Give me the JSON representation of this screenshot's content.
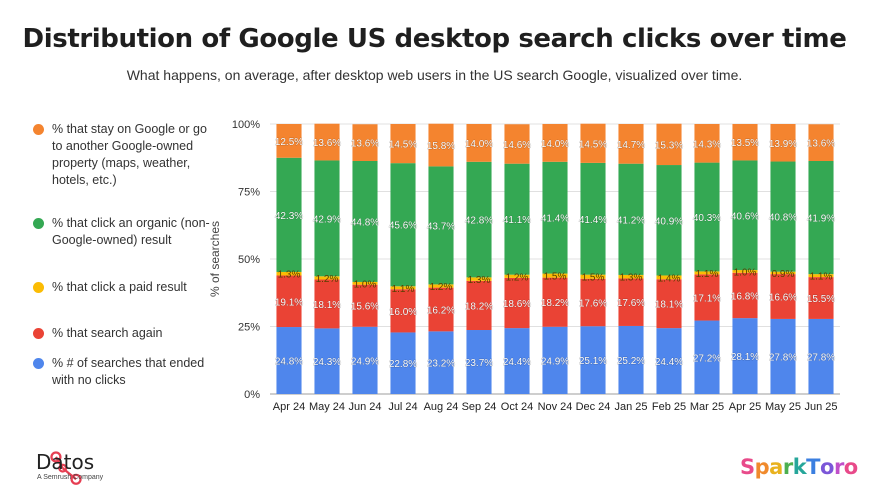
{
  "header": {
    "title": "Distribution of Google US desktop search clicks over time",
    "subtitle": "What happens, on average, after desktop web users in the US search Google, visualized over time."
  },
  "legend": [
    {
      "label": "% that stay on Google or go to another Google-owned property (maps, weather, hotels, etc.)",
      "color": "#f4842f"
    },
    {
      "label": "% that click an organic (non-Google-owned) result",
      "color": "#34a853"
    },
    {
      "label": "% that click a paid result",
      "color": "#fbbc04"
    },
    {
      "label": "% that search again",
      "color": "#ea4335"
    },
    {
      "label": "% # of searches that ended with no clicks",
      "color": "#4f86ec"
    }
  ],
  "chart_data": {
    "type": "bar",
    "stacked": true,
    "categories": [
      "Apr 24",
      "May 24",
      "Jun 24",
      "Jul 24",
      "Aug 24",
      "Sep 24",
      "Oct 24",
      "Nov 24",
      "Dec 24",
      "Jan 25",
      "Feb 25",
      "Mar 25",
      "Apr 25",
      "May 25",
      "Jun 25"
    ],
    "ylabel": "% of searches",
    "yticks": [
      "0%",
      "25%",
      "50%",
      "75%",
      "100%"
    ],
    "ylim": [
      0,
      100
    ],
    "grid": true,
    "series": [
      {
        "color": "#4f86ec",
        "values": [
          24.8,
          24.3,
          24.9,
          22.8,
          23.2,
          23.7,
          24.4,
          24.9,
          25.1,
          25.2,
          24.4,
          27.2,
          28.1,
          27.8,
          27.8
        ]
      },
      {
        "color": "#ea4335",
        "values": [
          19.1,
          18.1,
          15.6,
          16.0,
          16.2,
          18.2,
          18.6,
          18.2,
          17.6,
          17.6,
          18.1,
          17.1,
          16.8,
          16.6,
          15.5
        ]
      },
      {
        "color": "#fbbc04",
        "values": [
          1.3,
          1.2,
          1.0,
          1.1,
          1.2,
          1.3,
          1.2,
          1.5,
          1.5,
          1.3,
          1.4,
          1.1,
          1.0,
          0.9,
          1.1
        ]
      },
      {
        "color": "#34a853",
        "values": [
          42.3,
          42.9,
          44.8,
          45.6,
          43.7,
          42.8,
          41.1,
          41.4,
          41.4,
          41.2,
          40.9,
          40.3,
          40.6,
          40.8,
          41.9
        ]
      },
      {
        "color": "#f4842f",
        "values": [
          12.5,
          13.6,
          13.6,
          14.5,
          15.8,
          14.0,
          14.6,
          14.0,
          14.5,
          14.7,
          15.3,
          14.3,
          13.5,
          13.9,
          13.6
        ]
      }
    ]
  },
  "footer": {
    "datos_name": "Datos",
    "datos_sub": "A Semrush Company",
    "sparktoro_letters": [
      {
        "ch": "S",
        "color": "#e84a8a"
      },
      {
        "ch": "p",
        "color": "#f08a2c"
      },
      {
        "ch": "a",
        "color": "#e9b21f"
      },
      {
        "ch": "r",
        "color": "#4caf50"
      },
      {
        "ch": "k",
        "color": "#26a69a"
      },
      {
        "ch": "T",
        "color": "#3b7fe0"
      },
      {
        "ch": "o",
        "color": "#7b56d8"
      },
      {
        "ch": "r",
        "color": "#c04fc9"
      },
      {
        "ch": "o",
        "color": "#e84a8a"
      }
    ]
  }
}
